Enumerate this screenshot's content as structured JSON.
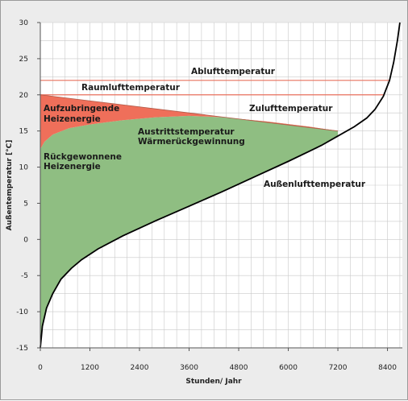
{
  "chart_data": {
    "type": "area",
    "xlabel": "Stunden/ Jahr",
    "ylabel": "Außentemperatur [°C]",
    "xlim": [
      0,
      8760
    ],
    "ylim": [
      -15,
      30
    ],
    "x_ticks": [
      0,
      1200,
      2400,
      3600,
      4800,
      6000,
      7200,
      8400
    ],
    "y_ticks": [
      -15,
      -10,
      -5,
      0,
      5,
      10,
      15,
      20,
      25,
      30
    ],
    "grid": true,
    "colors": {
      "recovered": "#8fbe82",
      "heating": "#ef6f5a",
      "outdoor_line": "#000000",
      "temp_lines": "#e8705e",
      "grid": "#c9c9c9",
      "plot_bg": "#ffffff"
    },
    "series": [
      {
        "name": "Außenlufttemperatur",
        "x": [
          0,
          50,
          150,
          300,
          500,
          750,
          1000,
          1400,
          2000,
          2800,
          3600,
          4400,
          5200,
          6000,
          6800,
          7200,
          7600,
          7900,
          8100,
          8300,
          8450,
          8550,
          8640,
          8700
        ],
        "y": [
          -15,
          -12,
          -9.5,
          -7.5,
          -5.5,
          -4,
          -2.8,
          -1.3,
          0.5,
          2.6,
          4.6,
          6.6,
          8.7,
          10.8,
          13,
          14.3,
          15.6,
          16.8,
          18,
          19.8,
          22,
          24.5,
          27.5,
          30
        ]
      },
      {
        "name": "Ablufttemperatur",
        "x": [
          0,
          8450
        ],
        "y": [
          22,
          22
        ]
      },
      {
        "name": "Raumlufttemperatur",
        "x": [
          0,
          8300
        ],
        "y": [
          20,
          20
        ]
      },
      {
        "name": "Zulufttemperatur",
        "x": [
          0,
          7200
        ],
        "y": [
          20,
          15
        ]
      },
      {
        "name": "Austrittstemperatur Wärmerückgewinnung",
        "x": [
          0,
          100,
          300,
          700,
          1200,
          2000,
          2800,
          3600,
          4400,
          5500,
          6500,
          7200
        ],
        "y": [
          12.5,
          13.5,
          14.5,
          15.4,
          15.9,
          16.5,
          16.9,
          17.1,
          16.9,
          16.3,
          15.6,
          15
        ]
      }
    ],
    "annotations": {
      "abluft": "Ablufttemperatur",
      "raumluft": "Raumlufttemperatur",
      "zuluft": "Zulufttemperatur",
      "heiz_1": "Aufzubringende",
      "heiz_2": "Heizenergie",
      "austritt_1": "Austrittstemperatur",
      "austritt_2": "Wärmerückgewinnung",
      "rueck_1": "Rückgewonnene",
      "rueck_2": "Heizenergie",
      "aussen": "Außenlufttemperatur"
    }
  }
}
